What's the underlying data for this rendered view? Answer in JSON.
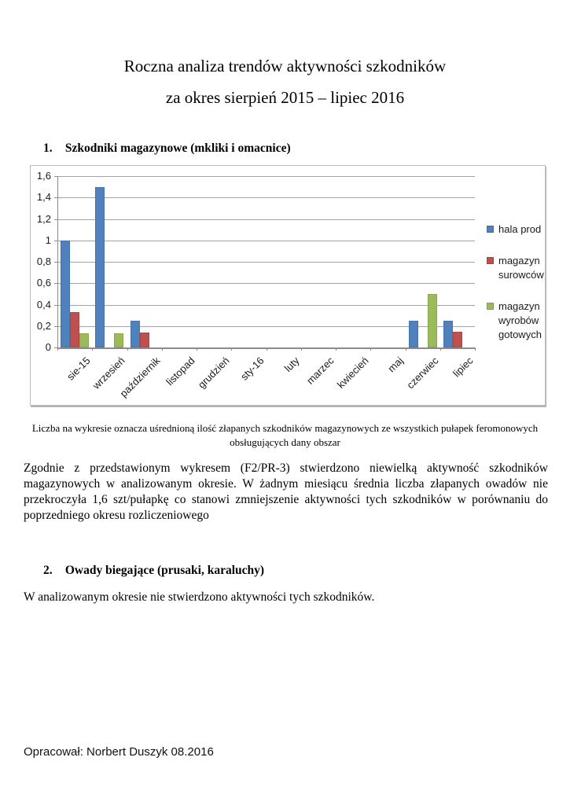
{
  "document": {
    "title_line1": "Roczna analiza trendów aktywności szkodników",
    "title_line2": "za okres sierpień 2015 – lipiec 2016",
    "section1": {
      "number": "1.",
      "heading": "Szkodniki magazynowe (mkliki i omacnice)"
    },
    "chart_caption_line1": "Liczba na wykresie oznacza uśrednioną ilość złapanych szkodników magazynowych ze wszystkich pułapek feromonowych",
    "chart_caption_line2": "obsługujących dany obszar",
    "paragraph_lines": [
      "Zgodnie z przedstawionym wykresem (F2/PR-3) stwierdzono niewielką aktywność szkodników",
      "magazynowych w analizowanym okresie. W żadnym miesiącu średnia liczba złapanych owadów nie",
      "przekroczyła 1,6 szt/pułapkę co stanowi zmniejszenie aktywności tych szkodników w porównaniu do",
      "poprzedniego okresu rozliczeniowego"
    ],
    "section2": {
      "number": "2.",
      "heading": "Owady biegające (prusaki, karaluchy)"
    },
    "section2_text": "W analizowanym okresie nie stwierdzono aktywności tych szkodników.",
    "footer": "Opracował: Norbert Duszyk 08.2016"
  },
  "chart_data": {
    "type": "bar",
    "title": "",
    "xlabel": "",
    "ylabel": "",
    "categories": [
      "sie-15",
      "wrzesień",
      "październik",
      "listopad",
      "grudzień",
      "sty-16",
      "luty",
      "marzec",
      "kwiecień",
      "maj",
      "czerwiec",
      "lipiec"
    ],
    "series": [
      {
        "name": "hala prod",
        "color": "#4F81BD",
        "values": [
          1.0,
          1.5,
          0.25,
          0,
          0,
          0,
          0,
          0,
          0,
          0,
          0.25,
          0.25
        ]
      },
      {
        "name": "magazyn surowców",
        "color": "#C0504D",
        "values": [
          0.33,
          0,
          0.14,
          0,
          0,
          0,
          0,
          0,
          0,
          0,
          0,
          0.15
        ]
      },
      {
        "name": "magazyn wyrobów gotowych",
        "color": "#9BBB59",
        "values": [
          0.13,
          0.13,
          0,
          0,
          0,
          0,
          0,
          0,
          0,
          0,
          0.5,
          0
        ]
      }
    ],
    "ylim": [
      0,
      1.6
    ],
    "ytick_step": 0.2,
    "ytick_labels": [
      "0",
      "0,2",
      "0,4",
      "0,6",
      "0,8",
      "1",
      "1,2",
      "1,4",
      "1,6"
    ],
    "grid": true,
    "legend_position": "right"
  }
}
